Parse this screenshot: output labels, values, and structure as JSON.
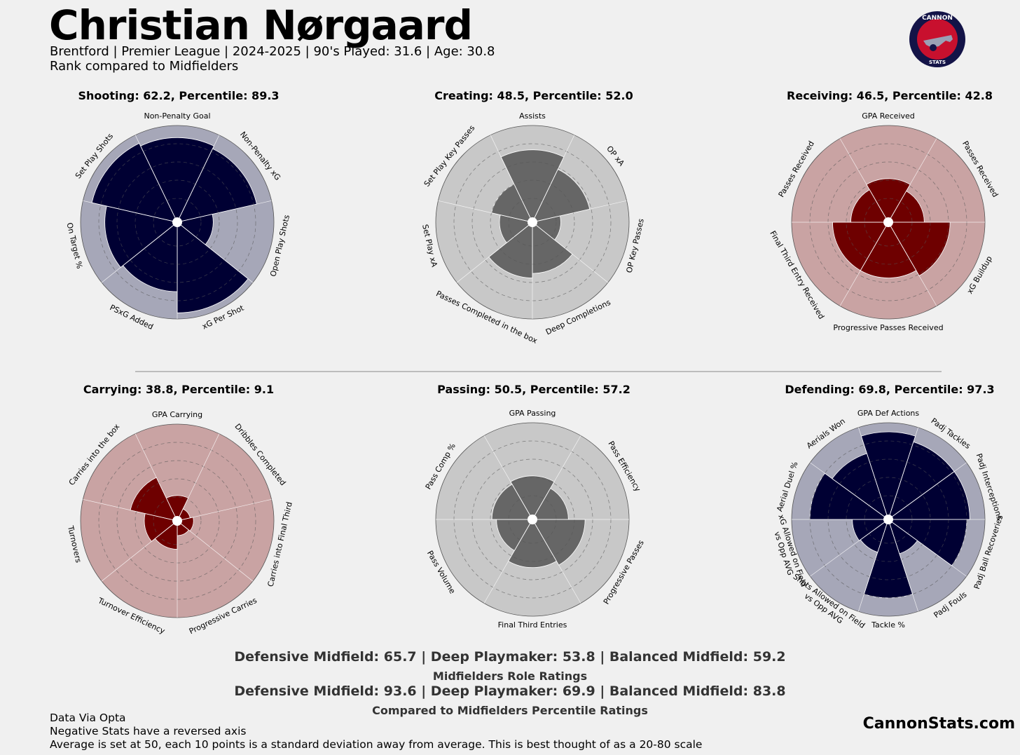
{
  "header": {
    "player_name": "Christian Nørgaard",
    "subtitle": "Brentford  | Premier League | 2024-2025 | 90's Played: 31.6 | Age: 30.8",
    "comparison": "Rank compared to Midfielders"
  },
  "logo": {
    "top_text": "CANNON",
    "bottom_text": "STATS"
  },
  "colors": {
    "background": "#f0f0f0",
    "navy_fill": "#000033",
    "navy_bg": "#a6a7b8",
    "red_fill": "#6e0000",
    "red_bg": "#c9a3a3",
    "grey_fill": "#666666",
    "grey_bg": "#c8c8c8"
  },
  "chart_data": [
    {
      "type": "polar-bar",
      "title": "Shooting: 62.2, Percentile: 89.3",
      "theme": "navy",
      "categories": [
        "Non-Penalty Goal",
        "Non-Penalty xG",
        "Open Play Shots",
        "xG Per Shot",
        "PSxG Added",
        "On Target %",
        "Set Play Shots"
      ],
      "values": [
        72,
        70,
        40,
        76,
        62,
        64,
        74
      ],
      "rlim": [
        20,
        80
      ]
    },
    {
      "type": "polar-bar",
      "title": "Creating: 48.5, Percentile: 52.0",
      "theme": "grey",
      "categories": [
        "Assists",
        "OP xA",
        "OP Key Passes",
        "Deep Completions",
        "Passes Completed in the box",
        "Set Play xA",
        "Set Play Key Passes"
      ],
      "values": [
        64,
        55,
        35,
        50,
        53,
        38,
        44
      ],
      "rlim": [
        20,
        80
      ]
    },
    {
      "type": "polar-bar",
      "title": "Receiving: 46.5, Percentile: 42.8",
      "theme": "red",
      "categories": [
        "GPA Received",
        "Passes Received",
        "xG Buildup",
        "Progressive Passes Received",
        "Final Third Entry Received",
        "Passes Received"
      ],
      "values": [
        45,
        40,
        57,
        53,
        53,
        41
      ],
      "rlim": [
        20,
        80
      ]
    },
    {
      "type": "polar-bar",
      "title": "Carrying: 38.8, Percentile: 9.1",
      "theme": "red",
      "categories": [
        "GPA Carrying",
        "Dribbles Completed",
        "Carries into Final Third",
        "Progressive Carries",
        "Turnover Efficiency",
        "Turnovers",
        "Carries into the box"
      ],
      "values": [
        33,
        25,
        27,
        26,
        35,
        38,
        48
      ],
      "rlim": [
        20,
        80
      ]
    },
    {
      "type": "polar-bar",
      "title": "Passing: 50.5, Percentile: 57.2",
      "theme": "grey",
      "categories": [
        "GPA Passing",
        "Pass Efficiency",
        "Progressive Passes",
        "Final Third Entries",
        "Pass Volume",
        "Pass Comp %"
      ],
      "values": [
        45,
        40,
        51,
        48,
        40,
        43
      ],
      "rlim": [
        20,
        80
      ]
    },
    {
      "type": "polar-bar",
      "title": "Defending: 69.8, Percentile: 97.3",
      "theme": "navy",
      "categories": [
        "GPA Def Actions",
        "Padj Tackles",
        "Padj Interceptions",
        "Padj Ball Recoveries",
        "Padj Fouls",
        "Tackle %",
        "Shots Allowed on Field vs Opp AVG",
        "xG Allowed on Field vs Opp AVG",
        "Aerial Duel %",
        "Aerials Won"
      ],
      "values": [
        74,
        70,
        70,
        68,
        40,
        68,
        39,
        40,
        68,
        62
      ],
      "rlim": [
        20,
        80
      ]
    }
  ],
  "ratings": {
    "roles_line": "Defensive Midfield: 65.7 | Deep Playmaker: 53.8 | Balanced Midfield: 59.2",
    "roles_caption": "Midfielders Role Ratings",
    "percentile_line": "Defensive Midfield: 93.6 | Deep Playmaker: 69.9 | Balanced Midfield: 83.8",
    "percentile_caption": "Compared to Midfielders Percentile Ratings"
  },
  "footer": {
    "source": "Data Via Opta",
    "note_negative": "Negative Stats have a reversed axis",
    "note_scale": "Average is set at 50, each 10 points is a standard deviation away from average. This is best thought of as a 20-80 scale",
    "site": "CannonStats.com"
  }
}
